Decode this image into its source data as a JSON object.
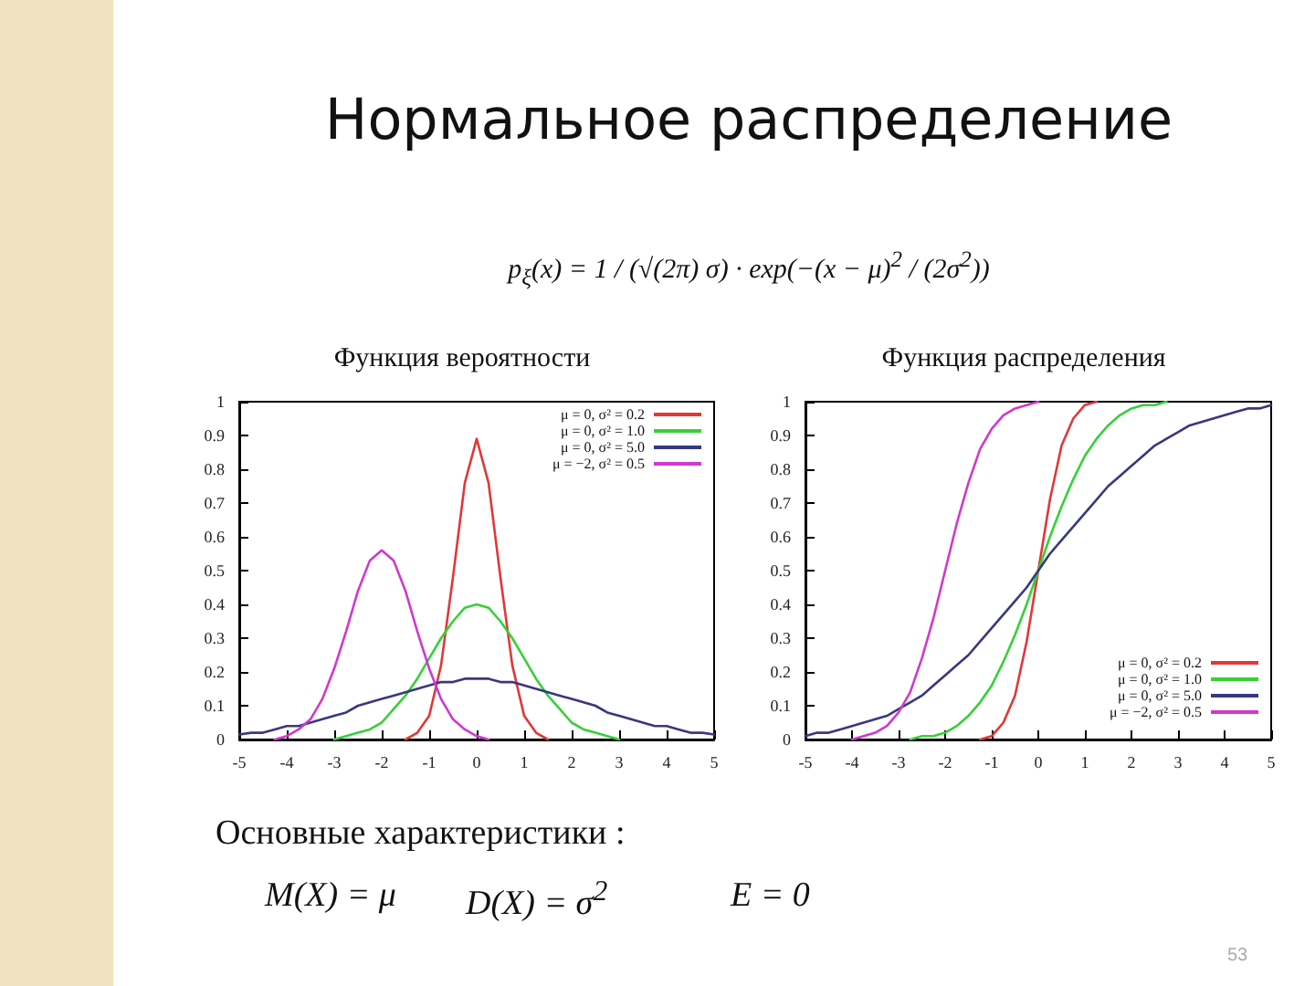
{
  "chart_data": [
    {
      "type": "line",
      "title": "Функция вероятности",
      "annotations": [
        "Нормальное распределение",
        "p$_{ξ}$(x) = 1 / (√(2π) σ) · exp(−(x − μ)$^{2}$ / (2σ$^{2}$))",
        "Основные характеристики :",
        "M(X) = μ",
        "D(X) = σ$^{2}$",
        "E = 0",
        "53"
      ],
      "x": [
        -5,
        -4.75,
        -4.5,
        -4.25,
        -4,
        -3.75,
        -3.5,
        -3.25,
        -3,
        -2.75,
        -2.5,
        -2.25,
        -2,
        -1.75,
        -1.5,
        -1.25,
        -1,
        -0.75,
        -0.5,
        -0.25,
        0,
        0.25,
        0.5,
        0.75,
        1,
        1.25,
        1.5,
        1.75,
        2,
        2.25,
        2.5,
        2.75,
        3,
        3.25,
        3.5,
        3.75,
        4,
        4.25,
        4.5,
        4.75,
        5
      ],
      "series": [
        {
          "name": "μ = 0, σ² = 0.2",
          "color": "#e03838",
          "values": [
            null,
            null,
            null,
            null,
            null,
            null,
            null,
            null,
            null,
            null,
            null,
            null,
            null,
            null,
            0,
            0.02,
            0.07,
            0.22,
            0.48,
            0.76,
            0.89,
            0.76,
            0.48,
            0.22,
            0.07,
            0.02,
            0,
            null,
            null,
            null,
            null,
            null,
            null,
            null,
            null,
            null,
            null,
            null,
            null,
            null,
            null
          ]
        },
        {
          "name": "μ = 0, σ² = 1.0",
          "color": "#38d038",
          "values": [
            null,
            null,
            null,
            null,
            null,
            null,
            null,
            null,
            0,
            0.01,
            0.02,
            0.03,
            0.05,
            0.09,
            0.13,
            0.18,
            0.24,
            0.3,
            0.35,
            0.39,
            0.4,
            0.39,
            0.35,
            0.3,
            0.24,
            0.18,
            0.13,
            0.09,
            0.05,
            0.03,
            0.02,
            0.01,
            0,
            null,
            null,
            null,
            null,
            null,
            null,
            null,
            null
          ]
        },
        {
          "name": "μ = 0, σ² = 5.0",
          "color": "#383880",
          "values": [
            0.015,
            0.02,
            0.02,
            0.03,
            0.04,
            0.04,
            0.05,
            0.06,
            0.07,
            0.08,
            0.1,
            0.11,
            0.12,
            0.13,
            0.14,
            0.15,
            0.16,
            0.17,
            0.17,
            0.18,
            0.18,
            0.18,
            0.17,
            0.17,
            0.16,
            0.15,
            0.14,
            0.13,
            0.12,
            0.11,
            0.1,
            0.08,
            0.07,
            0.06,
            0.05,
            0.04,
            0.04,
            0.03,
            0.02,
            0.02,
            0.015
          ]
        },
        {
          "name": "μ = −2, σ² = 0.5",
          "color": "#d038d0",
          "values": [
            null,
            null,
            null,
            0,
            0.01,
            0.03,
            0.06,
            0.12,
            0.21,
            0.32,
            0.44,
            0.53,
            0.56,
            0.53,
            0.44,
            0.32,
            0.21,
            0.12,
            0.06,
            0.03,
            0.01,
            0,
            null,
            null,
            null,
            null,
            null,
            null,
            null,
            null,
            null,
            null,
            null,
            null,
            null,
            null,
            null,
            null,
            null,
            null,
            null
          ]
        }
      ],
      "xlim": [
        -5,
        5
      ],
      "xticks": [
        -5,
        -4,
        -3,
        -2,
        -1,
        0,
        1,
        2,
        3,
        4,
        5
      ],
      "ylim": [
        0,
        1
      ],
      "yticks": [
        0,
        0.1,
        0.2,
        0.3,
        0.4,
        0.5,
        0.6,
        0.7,
        0.8,
        0.9,
        1
      ],
      "grid": false,
      "legend": "top right",
      "marker": "none"
    },
    {
      "type": "line",
      "title": "Функция распределения",
      "x": [
        -5,
        -4.75,
        -4.5,
        -4.25,
        -4,
        -3.75,
        -3.5,
        -3.25,
        -3,
        -2.75,
        -2.5,
        -2.25,
        -2,
        -1.75,
        -1.5,
        -1.25,
        -1,
        -0.75,
        -0.5,
        -0.25,
        0,
        0.25,
        0.5,
        0.75,
        1,
        1.25,
        1.5,
        1.75,
        2,
        2.25,
        2.5,
        2.75,
        3,
        3.25,
        3.5,
        3.75,
        4,
        4.25,
        4.5,
        4.75,
        5
      ],
      "series": [
        {
          "name": "μ = 0, σ² = 0.2",
          "color": "#e03838",
          "values": [
            null,
            null,
            null,
            null,
            null,
            null,
            null,
            null,
            null,
            null,
            null,
            null,
            null,
            null,
            null,
            0,
            0.01,
            0.05,
            0.13,
            0.29,
            0.5,
            0.71,
            0.87,
            0.95,
            0.99,
            1,
            null,
            null,
            null,
            null,
            null,
            null,
            null,
            null,
            null,
            null,
            null,
            null,
            null,
            null,
            null
          ]
        },
        {
          "name": "μ = 0, σ² = 1.0",
          "color": "#38d038",
          "values": [
            null,
            null,
            null,
            null,
            null,
            null,
            null,
            null,
            null,
            0,
            0.01,
            0.01,
            0.02,
            0.04,
            0.07,
            0.11,
            0.16,
            0.23,
            0.31,
            0.4,
            0.5,
            0.6,
            0.69,
            0.77,
            0.84,
            0.89,
            0.93,
            0.96,
            0.98,
            0.99,
            0.99,
            1,
            null,
            null,
            null,
            null,
            null,
            null,
            null,
            null,
            null
          ]
        },
        {
          "name": "μ = 0, σ² = 5.0",
          "color": "#383880",
          "values": [
            0.01,
            0.02,
            0.02,
            0.03,
            0.04,
            0.05,
            0.06,
            0.07,
            0.09,
            0.11,
            0.13,
            0.16,
            0.19,
            0.22,
            0.25,
            0.29,
            0.33,
            0.37,
            0.41,
            0.45,
            0.5,
            0.55,
            0.59,
            0.63,
            0.67,
            0.71,
            0.75,
            0.78,
            0.81,
            0.84,
            0.87,
            0.89,
            0.91,
            0.93,
            0.94,
            0.95,
            0.96,
            0.97,
            0.98,
            0.98,
            0.99
          ]
        },
        {
          "name": "μ = −2, σ² = 0.5",
          "color": "#d038d0",
          "values": [
            null,
            null,
            null,
            null,
            0,
            0.01,
            0.02,
            0.04,
            0.08,
            0.14,
            0.24,
            0.36,
            0.5,
            0.64,
            0.76,
            0.86,
            0.92,
            0.96,
            0.98,
            0.99,
            1,
            null,
            null,
            null,
            null,
            null,
            null,
            null,
            null,
            null,
            null,
            null,
            null,
            null,
            null,
            null,
            null,
            null,
            null,
            null,
            null
          ]
        }
      ],
      "xlim": [
        -5,
        5
      ],
      "xticks": [
        -5,
        -4,
        -3,
        -2,
        -1,
        0,
        1,
        2,
        3,
        4,
        5
      ],
      "ylim": [
        0,
        1
      ],
      "yticks": [
        0,
        0.1,
        0.2,
        0.3,
        0.4,
        0.5,
        0.6,
        0.7,
        0.8,
        0.9,
        1
      ],
      "grid": false,
      "legend": "bottom right",
      "marker": "none"
    }
  ]
}
